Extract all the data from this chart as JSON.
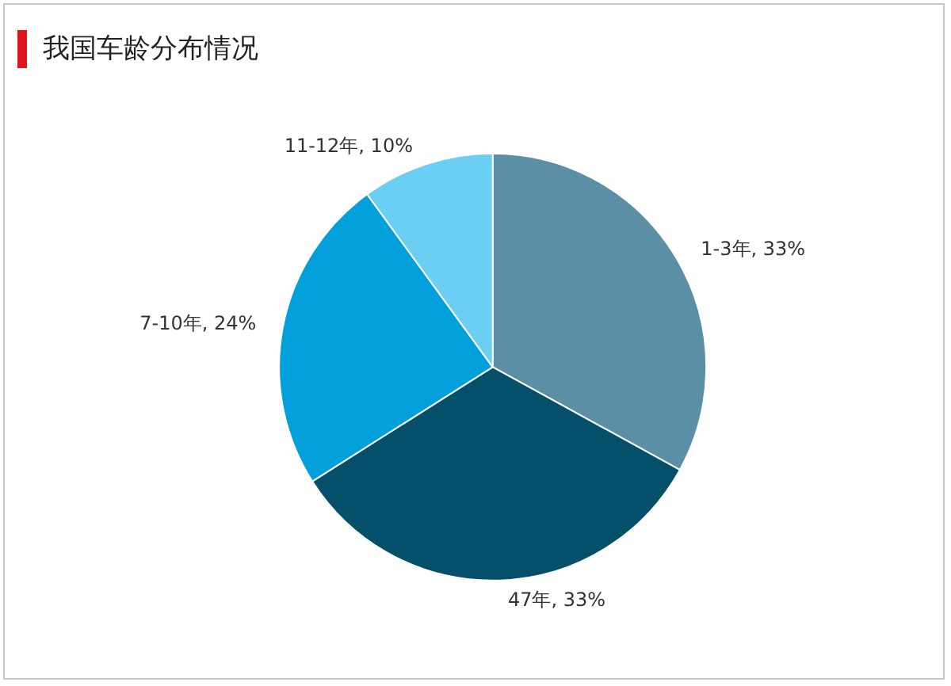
{
  "chart_data": {
    "type": "pie",
    "title": "我国车龄分布情况",
    "categories": [
      "1-3年",
      "47年",
      "7-10年",
      "11-12年"
    ],
    "values": [
      33,
      33,
      24,
      10
    ],
    "value_labels": [
      ", 33%",
      ", 33%",
      ", 24%",
      ", 10%"
    ],
    "colors": [
      "#5b8fa6",
      "#044f69",
      "#02a0da",
      "#6bcff3"
    ]
  }
}
